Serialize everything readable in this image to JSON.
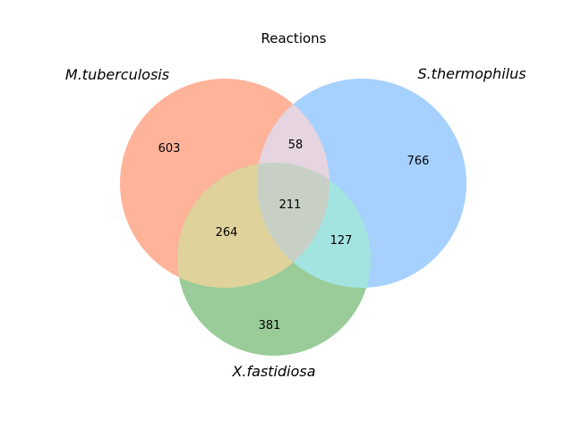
{
  "title": "Reactions",
  "sets": {
    "a": {
      "label": "M.tuberculosis",
      "color": "#ffb399"
    },
    "b": {
      "label": "S.thermophilus",
      "color": "#a6d1ff"
    },
    "c": {
      "label": "X.fastidiosa",
      "color": "#99cc99"
    }
  },
  "regions": {
    "a_only": "603",
    "b_only": "766",
    "c_only": "381",
    "ab": "58",
    "ac": "264",
    "bc": "127",
    "abc": "211"
  },
  "region_colors": {
    "ab": "#e6d4e0",
    "ac": "#e0d29b",
    "bc": "#a3e4e0",
    "abc": "#c8d0c6"
  }
}
